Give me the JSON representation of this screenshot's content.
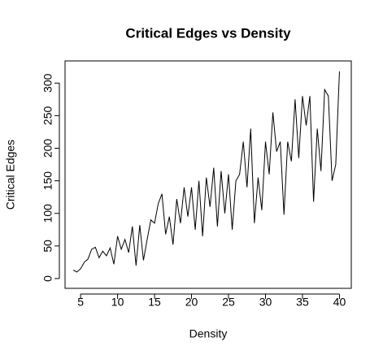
{
  "chart_data": {
    "type": "line",
    "title": "Critical Edges vs Density",
    "x_label": "Density",
    "y_label": "Critical Edges",
    "x": [
      4,
      4.5,
      5,
      5.5,
      6,
      6.5,
      7,
      7.5,
      8,
      8.5,
      9,
      9.5,
      10,
      10.5,
      11,
      11.5,
      12,
      12.5,
      13,
      13.5,
      14,
      14.5,
      15,
      15.5,
      16,
      16.5,
      17,
      17.5,
      18,
      18.5,
      19,
      19.5,
      20,
      20.5,
      21,
      21.5,
      22,
      22.5,
      23,
      23.5,
      24,
      24.5,
      25,
      25.5,
      26,
      26.5,
      27,
      27.5,
      28,
      28.5,
      29,
      29.5,
      30,
      30.5,
      31,
      31.5,
      32,
      32.5,
      33,
      33.5,
      34,
      34.5,
      35,
      35.5,
      36,
      36.5,
      37,
      37.5,
      38,
      38.5,
      39,
      39.5,
      40
    ],
    "series": [
      {
        "name": "Critical Edges",
        "color": "#000000",
        "values": [
          13,
          10,
          15,
          25,
          30,
          45,
          48,
          32,
          42,
          35,
          47,
          22,
          65,
          45,
          60,
          40,
          80,
          20,
          82,
          28,
          60,
          90,
          85,
          115,
          130,
          68,
          95,
          52,
          122,
          85,
          140,
          95,
          140,
          75,
          150,
          65,
          155,
          110,
          170,
          80,
          165,
          100,
          160,
          75,
          150,
          160,
          210,
          140,
          230,
          85,
          155,
          105,
          210,
          160,
          255,
          195,
          210,
          98,
          210,
          180,
          275,
          185,
          280,
          235,
          280,
          118,
          230,
          165,
          290,
          280,
          150,
          175,
          318
        ]
      }
    ],
    "xlim": [
      2.9,
      41.6
    ],
    "ylim": [
      -15,
      334
    ],
    "xticks": [
      5,
      10,
      15,
      20,
      25,
      30,
      35,
      40
    ],
    "yticks": [
      0,
      50,
      100,
      150,
      200,
      250,
      300
    ]
  }
}
